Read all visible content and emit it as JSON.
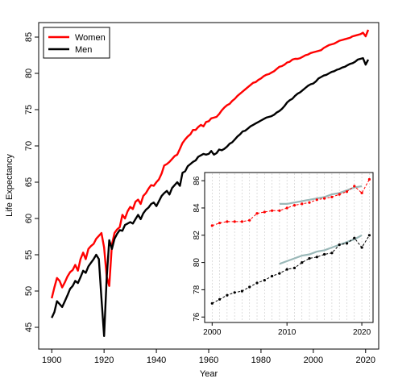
{
  "chart_data": [
    {
      "type": "line",
      "title": "",
      "xlabel": "Year",
      "ylabel": "Life Expectancy",
      "xlim": [
        1895,
        2025
      ],
      "ylim": [
        42,
        87
      ],
      "xticks": [
        1900,
        1920,
        1940,
        1960,
        1980,
        2000,
        2020
      ],
      "yticks": [
        45,
        50,
        55,
        60,
        65,
        70,
        75,
        80,
        85
      ],
      "grid": false,
      "legend_position": "top-left",
      "series": [
        {
          "name": "Women",
          "color": "#ff0000",
          "x": [
            1900,
            1901,
            1902,
            1903,
            1904,
            1905,
            1906,
            1907,
            1908,
            1909,
            1910,
            1911,
            1912,
            1913,
            1914,
            1915,
            1916,
            1917,
            1918,
            1919,
            1920,
            1921,
            1922,
            1923,
            1924,
            1925,
            1926,
            1927,
            1928,
            1929,
            1930,
            1931,
            1932,
            1933,
            1934,
            1935,
            1936,
            1937,
            1938,
            1939,
            1940,
            1941,
            1942,
            1943,
            1944,
            1945,
            1946,
            1947,
            1948,
            1949,
            1950,
            1951,
            1952,
            1953,
            1954,
            1955,
            1956,
            1957,
            1958,
            1959,
            1960,
            1961,
            1962,
            1963,
            1964,
            1965,
            1966,
            1967,
            1968,
            1969,
            1970,
            1971,
            1972,
            1973,
            1974,
            1975,
            1976,
            1977,
            1978,
            1979,
            1980,
            1981,
            1982,
            1983,
            1984,
            1985,
            1986,
            1987,
            1988,
            1989,
            1990,
            1991,
            1992,
            1993,
            1994,
            1995,
            1996,
            1997,
            1998,
            1999,
            2000,
            2001,
            2002,
            2003,
            2004,
            2005,
            2006,
            2007,
            2008,
            2009,
            2010,
            2011,
            2012,
            2013,
            2014,
            2015,
            2016,
            2017,
            2018,
            2019,
            2020,
            2021
          ],
          "y": [
            49.0,
            50.5,
            51.8,
            51.4,
            50.5,
            51.2,
            52.0,
            52.6,
            52.9,
            53.6,
            52.8,
            54.4,
            55.3,
            54.4,
            55.8,
            56.2,
            56.5,
            57.2,
            57.6,
            58.0,
            56.0,
            52.0,
            50.7,
            56.4,
            58.0,
            58.5,
            58.8,
            60.5,
            60.0,
            61.0,
            61.6,
            61.3,
            62.3,
            62.6,
            62.0,
            63.1,
            63.5,
            64.1,
            64.6,
            64.5,
            65.0,
            65.4,
            66.2,
            67.3,
            67.5,
            67.8,
            68.2,
            68.6,
            68.8,
            69.6,
            70.4,
            70.9,
            71.3,
            71.6,
            72.2,
            72.2,
            72.6,
            72.9,
            72.7,
            73.3,
            73.4,
            73.8,
            73.9,
            74.0,
            74.4,
            74.9,
            75.3,
            75.6,
            75.8,
            76.2,
            76.5,
            76.9,
            77.2,
            77.5,
            77.8,
            78.1,
            78.4,
            78.7,
            78.8,
            79.1,
            79.3,
            79.6,
            79.8,
            79.9,
            80.1,
            80.3,
            80.6,
            80.9,
            81.0,
            81.2,
            81.5,
            81.6,
            81.9,
            82.0,
            82.0,
            82.1,
            82.3,
            82.5,
            82.6,
            82.8,
            82.9,
            83.0,
            83.1,
            83.2,
            83.5,
            83.7,
            83.9,
            84.0,
            84.1,
            84.3,
            84.5,
            84.6,
            84.7,
            84.8,
            84.9,
            85.1,
            85.2,
            85.3,
            85.4,
            85.6,
            85.1,
            86.0
          ]
        },
        {
          "name": "Men",
          "color": "#000000",
          "x": [
            1900,
            1901,
            1902,
            1903,
            1904,
            1905,
            1906,
            1907,
            1908,
            1909,
            1910,
            1911,
            1912,
            1913,
            1914,
            1915,
            1916,
            1917,
            1918,
            1919,
            1920,
            1921,
            1922,
            1923,
            1924,
            1925,
            1926,
            1927,
            1928,
            1929,
            1930,
            1931,
            1932,
            1933,
            1934,
            1935,
            1936,
            1937,
            1938,
            1939,
            1940,
            1941,
            1942,
            1943,
            1944,
            1945,
            1946,
            1947,
            1948,
            1949,
            1950,
            1951,
            1952,
            1953,
            1954,
            1955,
            1956,
            1957,
            1958,
            1959,
            1960,
            1961,
            1962,
            1963,
            1964,
            1965,
            1966,
            1967,
            1968,
            1969,
            1970,
            1971,
            1972,
            1973,
            1974,
            1975,
            1976,
            1977,
            1978,
            1979,
            1980,
            1981,
            1982,
            1983,
            1984,
            1985,
            1986,
            1987,
            1988,
            1989,
            1990,
            1991,
            1992,
            1993,
            1994,
            1995,
            1996,
            1997,
            1998,
            1999,
            2000,
            2001,
            2002,
            2003,
            2004,
            2005,
            2006,
            2007,
            2008,
            2009,
            2010,
            2011,
            2012,
            2013,
            2014,
            2015,
            2016,
            2017,
            2018,
            2019,
            2020,
            2021
          ],
          "y": [
            46.3,
            47.1,
            48.6,
            48.2,
            47.8,
            48.6,
            49.4,
            50.3,
            50.7,
            51.4,
            51.1,
            51.9,
            52.8,
            52.5,
            53.4,
            53.9,
            54.4,
            55.0,
            54.4,
            49.0,
            43.8,
            51.8,
            57.0,
            55.8,
            57.2,
            57.9,
            58.4,
            58.3,
            59.1,
            59.3,
            59.5,
            59.3,
            59.9,
            60.5,
            59.9,
            60.7,
            61.2,
            61.5,
            62.0,
            62.2,
            61.7,
            62.4,
            63.1,
            63.5,
            63.8,
            63.3,
            64.2,
            64.6,
            65.0,
            64.5,
            66.3,
            66.5,
            67.2,
            67.5,
            67.8,
            68.0,
            68.5,
            68.7,
            68.9,
            68.8,
            68.9,
            69.3,
            68.8,
            69.0,
            69.5,
            69.4,
            69.6,
            69.9,
            70.3,
            70.5,
            70.9,
            71.3,
            71.6,
            72.0,
            72.1,
            72.4,
            72.7,
            72.9,
            73.1,
            73.3,
            73.5,
            73.7,
            73.9,
            74.0,
            74.1,
            74.3,
            74.6,
            74.8,
            75.1,
            75.5,
            76.0,
            76.3,
            76.5,
            76.9,
            77.2,
            77.4,
            77.7,
            78.0,
            78.3,
            78.5,
            78.6,
            78.9,
            79.3,
            79.5,
            79.7,
            79.8,
            80.0,
            80.2,
            80.3,
            80.5,
            80.6,
            80.8,
            80.9,
            81.1,
            81.3,
            81.4,
            81.6,
            81.9,
            82.0,
            82.1,
            81.2,
            81.9
          ]
        }
      ]
    },
    {
      "type": "scatter",
      "title": "",
      "xlabel": "",
      "ylabel": "",
      "xlim": [
        1999,
        2021.5
      ],
      "ylim": [
        75.6,
        86.6
      ],
      "xticks": [
        2000,
        2010,
        2020
      ],
      "yticks": [
        76,
        78,
        80,
        82,
        84,
        86
      ],
      "grid": true,
      "series": [
        {
          "color": "#ff0000",
          "x": [
            2000,
            2001,
            2002,
            2003,
            2004,
            2005,
            2006,
            2007,
            2008,
            2009,
            2010,
            2011,
            2012,
            2013,
            2014,
            2015,
            2016,
            2017,
            2018,
            2019,
            2020,
            2021
          ],
          "y": [
            82.7,
            82.9,
            83.0,
            83.0,
            83.0,
            83.1,
            83.6,
            83.7,
            83.8,
            83.8,
            84.0,
            84.2,
            84.3,
            84.4,
            84.6,
            84.7,
            84.8,
            85.0,
            85.2,
            85.6,
            85.1,
            86.1
          ],
          "trend": [
            84.3,
            84.3,
            84.4,
            84.5,
            84.6,
            84.7,
            84.8,
            85.0,
            85.1,
            85.3,
            85.5,
            85.6
          ]
        },
        {
          "color": "#000000",
          "x": [
            2000,
            2001,
            2002,
            2003,
            2004,
            2005,
            2006,
            2007,
            2008,
            2009,
            2010,
            2011,
            2012,
            2013,
            2014,
            2015,
            2016,
            2017,
            2018,
            2019,
            2020,
            2021
          ],
          "y": [
            77.0,
            77.3,
            77.6,
            77.8,
            77.9,
            78.2,
            78.5,
            78.7,
            79.0,
            79.2,
            79.5,
            79.6,
            80.0,
            80.3,
            80.4,
            80.6,
            80.7,
            81.3,
            81.4,
            81.8,
            81.1,
            82.0
          ],
          "trend": [
            79.9,
            80.1,
            80.3,
            80.5,
            80.6,
            80.8,
            80.9,
            81.1,
            81.3,
            81.5,
            81.7,
            82.0
          ]
        }
      ]
    }
  ]
}
